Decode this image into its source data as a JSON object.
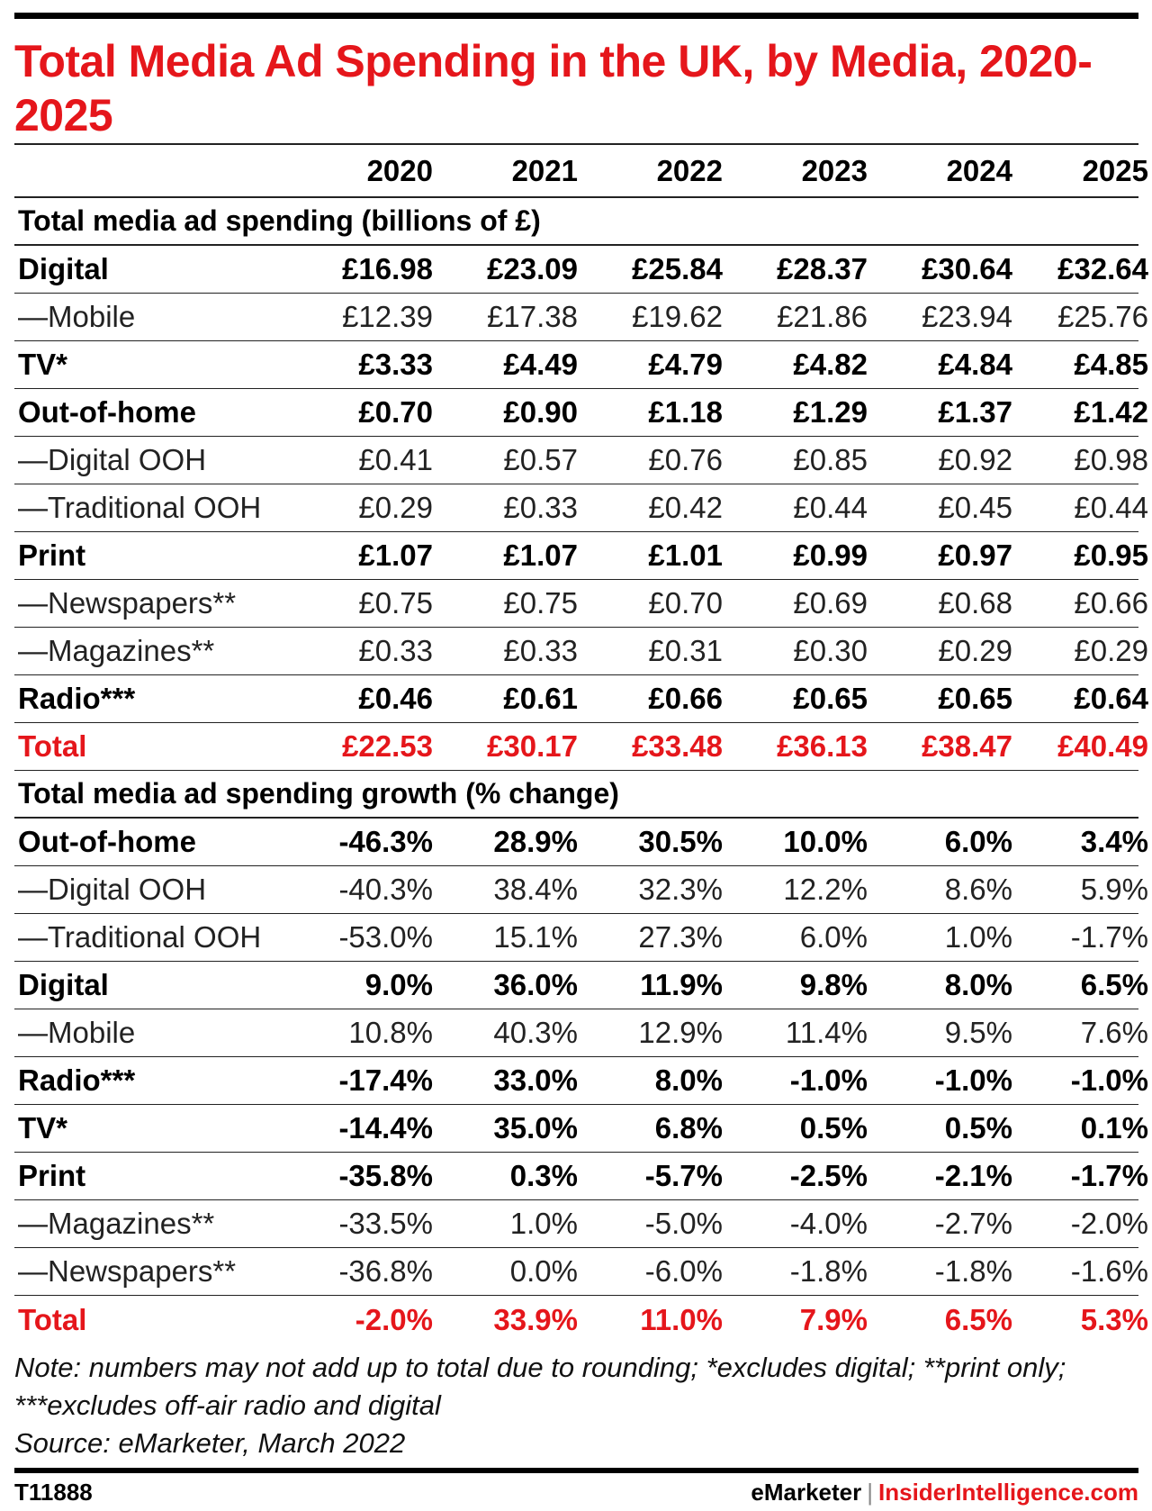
{
  "title": "Total Media Ad Spending in the UK, by Media, 2020-2025",
  "colors": {
    "accent": "#e5161b",
    "text": "#000000"
  },
  "chart_data": {
    "type": "table",
    "title": "Total Media Ad Spending in the UK, by Media, 2020-2025",
    "columns": [
      "2020",
      "2021",
      "2022",
      "2023",
      "2024",
      "2025"
    ],
    "sections": [
      {
        "heading": "Total media ad spending (billions of £)",
        "rows": [
          {
            "label": "Digital",
            "style": "bold",
            "values": [
              "£16.98",
              "£23.09",
              "£25.84",
              "£28.37",
              "£30.64",
              "£32.64"
            ]
          },
          {
            "label": "—Mobile",
            "style": "light",
            "values": [
              "£12.39",
              "£17.38",
              "£19.62",
              "£21.86",
              "£23.94",
              "£25.76"
            ]
          },
          {
            "label": "TV*",
            "style": "bold",
            "values": [
              "£3.33",
              "£4.49",
              "£4.79",
              "£4.82",
              "£4.84",
              "£4.85"
            ]
          },
          {
            "label": "Out-of-home",
            "style": "bold",
            "values": [
              "£0.70",
              "£0.90",
              "£1.18",
              "£1.29",
              "£1.37",
              "£1.42"
            ]
          },
          {
            "label": "—Digital OOH",
            "style": "light",
            "values": [
              "£0.41",
              "£0.57",
              "£0.76",
              "£0.85",
              "£0.92",
              "£0.98"
            ]
          },
          {
            "label": "—Traditional OOH",
            "style": "light",
            "values": [
              "£0.29",
              "£0.33",
              "£0.42",
              "£0.44",
              "£0.45",
              "£0.44"
            ]
          },
          {
            "label": "Print",
            "style": "bold",
            "values": [
              "£1.07",
              "£1.07",
              "£1.01",
              "£0.99",
              "£0.97",
              "£0.95"
            ]
          },
          {
            "label": "—Newspapers**",
            "style": "light",
            "values": [
              "£0.75",
              "£0.75",
              "£0.70",
              "£0.69",
              "£0.68",
              "£0.66"
            ]
          },
          {
            "label": "—Magazines**",
            "style": "light",
            "values": [
              "£0.33",
              "£0.33",
              "£0.31",
              "£0.30",
              "£0.29",
              "£0.29"
            ]
          },
          {
            "label": "Radio***",
            "style": "bold",
            "values": [
              "£0.46",
              "£0.61",
              "£0.66",
              "£0.65",
              "£0.65",
              "£0.64"
            ]
          },
          {
            "label": "Total",
            "style": "total",
            "values": [
              "£22.53",
              "£30.17",
              "£33.48",
              "£36.13",
              "£38.47",
              "£40.49"
            ]
          }
        ]
      },
      {
        "heading": "Total media ad spending growth (% change)",
        "rows": [
          {
            "label": "Out-of-home",
            "style": "bold",
            "values": [
              "-46.3%",
              "28.9%",
              "30.5%",
              "10.0%",
              "6.0%",
              "3.4%"
            ]
          },
          {
            "label": "—Digital OOH",
            "style": "light",
            "values": [
              "-40.3%",
              "38.4%",
              "32.3%",
              "12.2%",
              "8.6%",
              "5.9%"
            ]
          },
          {
            "label": "—Traditional OOH",
            "style": "light",
            "values": [
              "-53.0%",
              "15.1%",
              "27.3%",
              "6.0%",
              "1.0%",
              "-1.7%"
            ]
          },
          {
            "label": "Digital",
            "style": "bold",
            "values": [
              "9.0%",
              "36.0%",
              "11.9%",
              "9.8%",
              "8.0%",
              "6.5%"
            ]
          },
          {
            "label": "—Mobile",
            "style": "light",
            "values": [
              "10.8%",
              "40.3%",
              "12.9%",
              "11.4%",
              "9.5%",
              "7.6%"
            ]
          },
          {
            "label": "Radio***",
            "style": "bold",
            "values": [
              "-17.4%",
              "33.0%",
              "8.0%",
              "-1.0%",
              "-1.0%",
              "-1.0%"
            ]
          },
          {
            "label": "TV*",
            "style": "bold",
            "values": [
              "-14.4%",
              "35.0%",
              "6.8%",
              "0.5%",
              "0.5%",
              "0.1%"
            ]
          },
          {
            "label": "Print",
            "style": "bold",
            "values": [
              "-35.8%",
              "0.3%",
              "-5.7%",
              "-2.5%",
              "-2.1%",
              "-1.7%"
            ]
          },
          {
            "label": "—Magazines**",
            "style": "light",
            "values": [
              "-33.5%",
              "1.0%",
              "-5.0%",
              "-4.0%",
              "-2.7%",
              "-2.0%"
            ]
          },
          {
            "label": "—Newspapers**",
            "style": "light",
            "values": [
              "-36.8%",
              "0.0%",
              "-6.0%",
              "-1.8%",
              "-1.8%",
              "-1.6%"
            ]
          },
          {
            "label": "Total",
            "style": "total",
            "values": [
              "-2.0%",
              "33.9%",
              "11.0%",
              "7.9%",
              "6.5%",
              "5.3%"
            ]
          }
        ]
      }
    ]
  },
  "note_line1": "Note: numbers may not add up to total due to rounding; *excludes digital; **print only; ***excludes off-air radio and digital",
  "source": "Source: eMarketer, March 2022",
  "footer": {
    "code": "T11888",
    "brand_left": "eMarketer",
    "brand_sep": "|",
    "brand_right": "InsiderIntelligence.com"
  }
}
